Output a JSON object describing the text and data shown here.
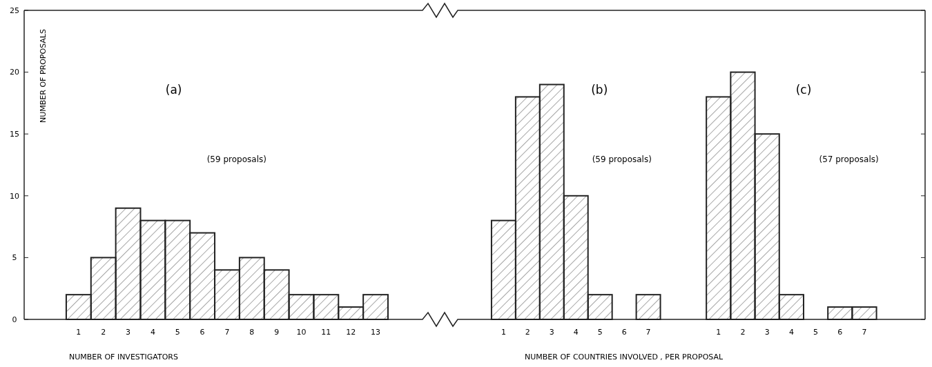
{
  "chart_data": [
    {
      "type": "histogram",
      "bins": [
        0.5,
        1.5,
        2.5,
        3.5,
        4.5,
        5.5,
        6.5,
        7.5,
        8.5,
        9.5,
        10.5,
        11.5,
        12.5,
        13.5
      ],
      "values": [
        2,
        5,
        9,
        8,
        8,
        7,
        4,
        5,
        4,
        2,
        2,
        1,
        2
      ],
      "color": "#222222",
      "xlim": [
        -1.2,
        14.7
      ],
      "xticks": [
        1,
        2,
        3,
        4,
        5,
        6,
        7,
        8,
        9,
        10,
        11,
        12,
        13
      ],
      "ylim": [
        0,
        25
      ],
      "yticks": [
        0,
        5,
        10,
        15,
        20,
        25
      ],
      "xlabel": "NUMBER OF INVESTIGATORS",
      "ylabel": "NUMBER OF PROPOSALS",
      "annotations": [
        "(a)",
        "(59 proposals)"
      ],
      "grid": false
    },
    {
      "type": "histogram",
      "bins": [
        0.5,
        1.5,
        2.5,
        3.5,
        4.5,
        5.5,
        6.5,
        7.5
      ],
      "values": [
        8,
        18,
        19,
        10,
        2,
        0,
        2
      ],
      "color": "#222222",
      "xlim": [
        -0.7,
        8.6
      ],
      "xticks": [
        1,
        2,
        3,
        4,
        5,
        6,
        7
      ],
      "ylim": [
        0,
        25
      ],
      "tick_labels": "x",
      "xlabel": "NUMBER OF COUNTRIES INVOLVED , PER PROPOSAL",
      "annotations": [
        "(b)",
        "(59 proposals)"
      ],
      "grid": false
    },
    {
      "type": "histogram",
      "bins": [
        0.5,
        1.5,
        2.5,
        3.5,
        4.5,
        5.5,
        6.5,
        7.5
      ],
      "values": [
        18,
        20,
        15,
        2,
        0,
        1,
        1
      ],
      "color": "#222222",
      "xlim": [
        -0.3,
        9.5
      ],
      "xticks": [
        1,
        2,
        3,
        4,
        5,
        6,
        7
      ],
      "ylim": [
        0,
        25
      ],
      "yticks": [
        0,
        5,
        10,
        15,
        20,
        25
      ],
      "tick_labels": "x",
      "annotations": [
        "(c)",
        "(57 proposals)"
      ],
      "grid": false
    }
  ]
}
